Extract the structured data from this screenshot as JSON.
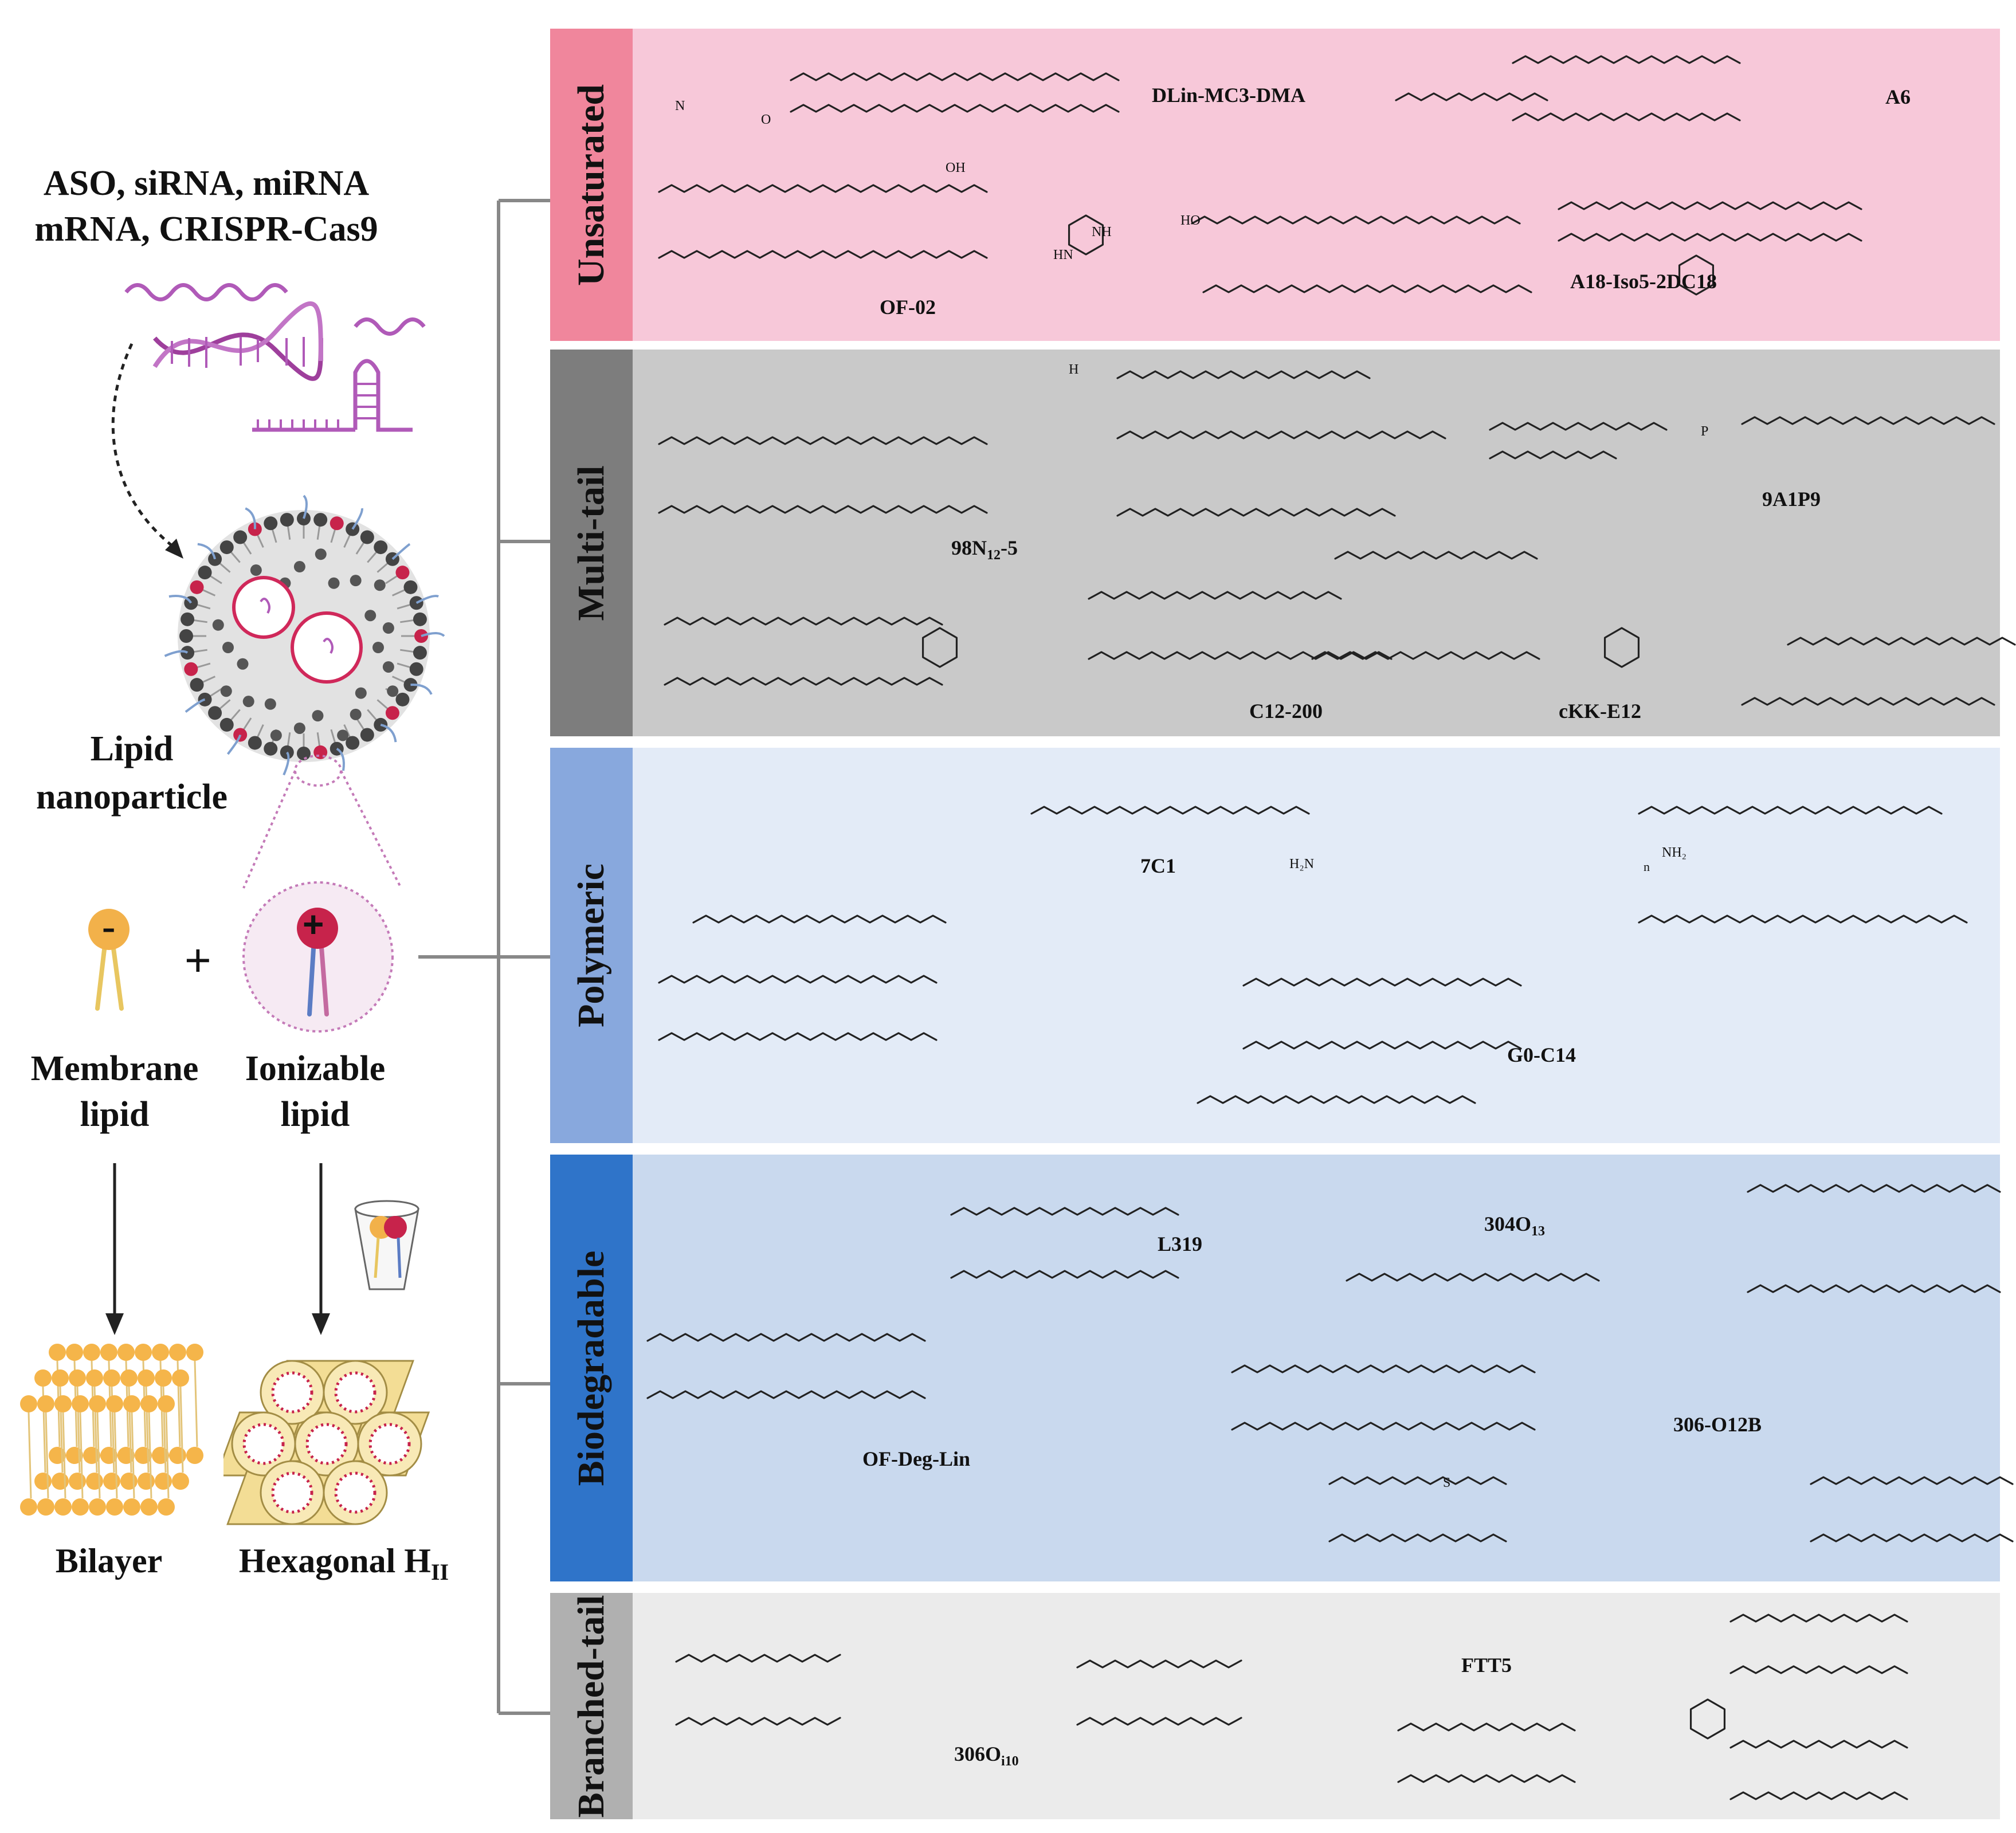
{
  "left_panel": {
    "cargo_line1": "ASO, siRNA, miRNA",
    "cargo_line2": "mRNA, CRISPR-Cas9",
    "nanoparticle_line1": "Lipid",
    "nanoparticle_line2": "nanoparticle",
    "membrane_line1": "Membrane",
    "membrane_line2": "lipid",
    "ionizable_line1": "Ionizable",
    "ionizable_line2": "lipid",
    "plus": "+",
    "minus_sign": "-",
    "plus_sign": "+",
    "bilayer_label": "Bilayer",
    "hexagonal_label": "Hexagonal H",
    "hexagonal_sub": "II"
  },
  "categories": [
    {
      "label": "Unsaturated",
      "color": "#f0869c",
      "bg": "#f7c8d9"
    },
    {
      "label": "Multi-tail",
      "color": "#7d7d7d",
      "bg": "#c9c9c9"
    },
    {
      "label": "Polymeric",
      "color": "#88a8dd",
      "bg": "#e3ebf7"
    },
    {
      "label": "Biodegradable",
      "color": "#2f74c9",
      "bg": "#c9d9ee"
    },
    {
      "label": "Branched-tail",
      "color": "#b0b0b0",
      "bg": "#ebebeb"
    }
  ],
  "lipids": {
    "dlin": "DLin-MC3-DMA",
    "a6": "A6",
    "of02": "OF-02",
    "a18": "A18-Iso5-2DC18",
    "n98_main": "98N",
    "n98_sub": "12",
    "n98_tail": "-5",
    "a1p9": "9A1P9",
    "c12": "C12-200",
    "ckk": "cKK-E12",
    "c7c1": "7C1",
    "g0": "G0-C14",
    "l319": "L319",
    "o304_main": "304O",
    "o304_sub": "13",
    "o306b": "306-O12B",
    "ofdeg": "OF-Deg-Lin",
    "o306_main": "306O",
    "o306_sub": "i10",
    "ftt5": "FTT5"
  },
  "atoms": {
    "n": "N",
    "o": "O",
    "oh": "OH",
    "ho": "HO",
    "h": "H",
    "nh": "NH",
    "hn": "HN",
    "p": "P",
    "s": "S",
    "h2n": "H₂N",
    "nh2": "NH₂",
    "nsub": "n"
  }
}
